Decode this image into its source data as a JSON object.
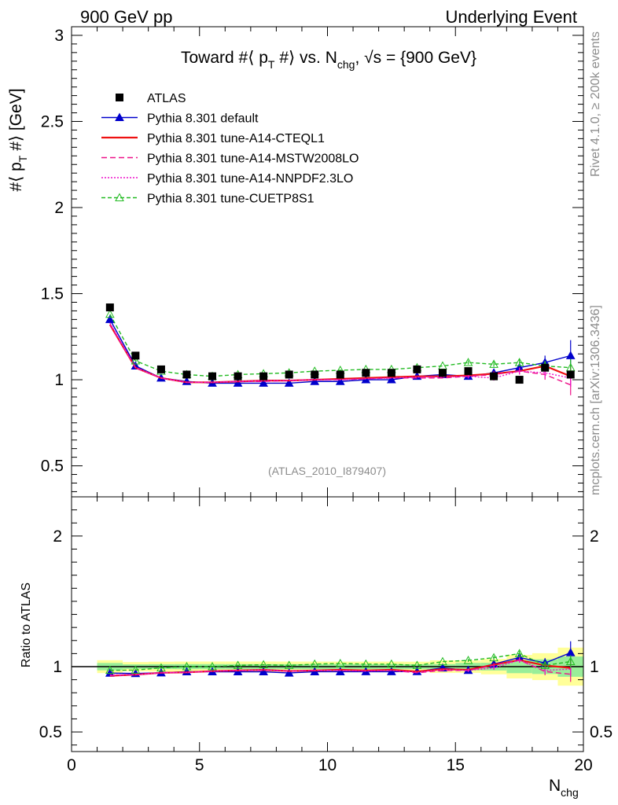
{
  "header": {
    "left": "900 GeV pp",
    "right": "Underlying Event"
  },
  "side_labels": {
    "rivet": "Rivet 4.1.0, ≥ 200k events",
    "mcplots": "mcplots.cern.ch [arXiv:1306.3436]"
  },
  "chart_data": {
    "type": "line",
    "title": "Toward #⟨ p_T #⟩ vs. N_chg, √s = {900 GeV}",
    "title_parts": {
      "a": "Toward #⟨ p",
      "b": "T",
      "c": " #⟩ vs. N",
      "d": "chg",
      "e": ", √s = {900 GeV}"
    },
    "ylabel_parts": {
      "a": "#⟨ p",
      "b": "T",
      "c": " #⟩ [GeV]"
    },
    "xlabel_parts": {
      "a": "N",
      "b": "chg"
    },
    "ratio_ylabel": "Ratio to ATLAS",
    "analysis_tag": "(ATLAS_2010_I879407)",
    "xlim": [
      0,
      20
    ],
    "ylim": [
      0.32,
      3.05
    ],
    "ratio_ylim": [
      0.35,
      2.3
    ],
    "x_ticks": [
      0,
      5,
      10,
      15,
      20
    ],
    "x_tick_labels": [
      "0",
      "5",
      "10",
      "15",
      "20"
    ],
    "y_ticks": [
      0.5,
      1,
      1.5,
      2,
      2.5,
      3
    ],
    "y_tick_labels": [
      "0.5",
      "1",
      "1.5",
      "2",
      "2.5",
      "3"
    ],
    "ratio_ticks": [
      0.5,
      1,
      2
    ],
    "ratio_tick_labels": [
      "0.5",
      "1",
      "2"
    ],
    "x": [
      1.5,
      2.5,
      3.5,
      4.5,
      5.5,
      6.5,
      7.5,
      8.5,
      9.5,
      10.5,
      11.5,
      12.5,
      13.5,
      14.5,
      15.5,
      16.5,
      17.5,
      18.5,
      19.5
    ],
    "data": {
      "name": "ATLAS",
      "values": [
        1.42,
        1.14,
        1.06,
        1.03,
        1.02,
        1.02,
        1.02,
        1.03,
        1.03,
        1.03,
        1.04,
        1.04,
        1.06,
        1.04,
        1.05,
        1.02,
        1.0,
        1.07,
        1.03
      ],
      "band_inner": [
        0.04,
        0.02,
        0.02,
        0.02,
        0.02,
        0.02,
        0.02,
        0.02,
        0.02,
        0.02,
        0.02,
        0.02,
        0.02,
        0.02,
        0.03,
        0.03,
        0.05,
        0.06,
        0.08
      ],
      "band_outer": [
        0.07,
        0.04,
        0.04,
        0.04,
        0.04,
        0.04,
        0.04,
        0.04,
        0.04,
        0.04,
        0.04,
        0.04,
        0.04,
        0.05,
        0.05,
        0.06,
        0.09,
        0.11,
        0.15
      ]
    },
    "series": [
      {
        "name": "Pythia 8.301 default",
        "color": "#0000cc",
        "dash": "",
        "marker": "triangle-filled",
        "values": [
          1.35,
          1.08,
          1.01,
          0.99,
          0.98,
          0.98,
          0.98,
          0.98,
          0.99,
          0.99,
          1.0,
          1.0,
          1.02,
          1.03,
          1.02,
          1.04,
          1.07,
          1.1,
          1.14
        ],
        "errors": [
          0.005,
          0.005,
          0.005,
          0.005,
          0.005,
          0.005,
          0.005,
          0.005,
          0.005,
          0.005,
          0.006,
          0.007,
          0.008,
          0.01,
          0.012,
          0.015,
          0.02,
          0.04,
          0.09
        ]
      },
      {
        "name": "Pythia 8.301 tune-A14-CTEQL1",
        "color": "#ee1111",
        "dash": "",
        "marker": "none",
        "values": [
          1.32,
          1.07,
          1.01,
          0.985,
          0.985,
          0.99,
          0.995,
          0.995,
          1.0,
          1.005,
          1.01,
          1.015,
          1.02,
          1.02,
          1.025,
          1.035,
          1.05,
          1.08,
          1.02
        ],
        "errors": [
          0.005,
          0.005,
          0.005,
          0.005,
          0.005,
          0.005,
          0.005,
          0.005,
          0.005,
          0.005,
          0.006,
          0.007,
          0.008,
          0.01,
          0.012,
          0.015,
          0.02,
          0.03,
          0.06
        ]
      },
      {
        "name": "Pythia 8.301 tune-A14-MSTW2008LO",
        "color": "#ee1188",
        "dash": "7,4",
        "marker": "none",
        "values": [
          1.32,
          1.07,
          1.01,
          0.985,
          0.985,
          0.99,
          0.99,
          0.995,
          1.0,
          1.0,
          1.005,
          1.01,
          1.01,
          1.01,
          1.02,
          1.03,
          1.05,
          1.03,
          0.97
        ],
        "errors": [
          0.005,
          0.005,
          0.005,
          0.005,
          0.005,
          0.005,
          0.005,
          0.005,
          0.005,
          0.005,
          0.006,
          0.007,
          0.008,
          0.01,
          0.012,
          0.015,
          0.02,
          0.03,
          0.06
        ]
      },
      {
        "name": "Pythia 8.301 tune-A14-NNPDF2.3LO",
        "color": "#ee11cc",
        "dash": "2,2",
        "marker": "none",
        "values": [
          1.33,
          1.07,
          1.01,
          0.985,
          0.985,
          0.99,
          0.995,
          0.995,
          1.0,
          1.0,
          1.005,
          1.01,
          1.015,
          1.015,
          1.02,
          1.01,
          1.05,
          1.04,
          1.01
        ],
        "errors": [
          0.005,
          0.005,
          0.005,
          0.005,
          0.005,
          0.005,
          0.005,
          0.005,
          0.005,
          0.005,
          0.006,
          0.007,
          0.008,
          0.01,
          0.012,
          0.015,
          0.02,
          0.03,
          0.05
        ]
      },
      {
        "name": "Pythia 8.301 tune-CUETP8S1",
        "color": "#22bb22",
        "dash": "5,3",
        "marker": "triangle-open",
        "values": [
          1.38,
          1.11,
          1.05,
          1.03,
          1.02,
          1.03,
          1.035,
          1.04,
          1.05,
          1.055,
          1.06,
          1.06,
          1.07,
          1.08,
          1.1,
          1.09,
          1.1,
          1.08,
          1.07
        ],
        "errors": [
          0.005,
          0.005,
          0.005,
          0.005,
          0.005,
          0.005,
          0.005,
          0.005,
          0.005,
          0.005,
          0.006,
          0.007,
          0.008,
          0.01,
          0.012,
          0.015,
          0.02,
          0.03,
          0.05
        ]
      }
    ]
  }
}
